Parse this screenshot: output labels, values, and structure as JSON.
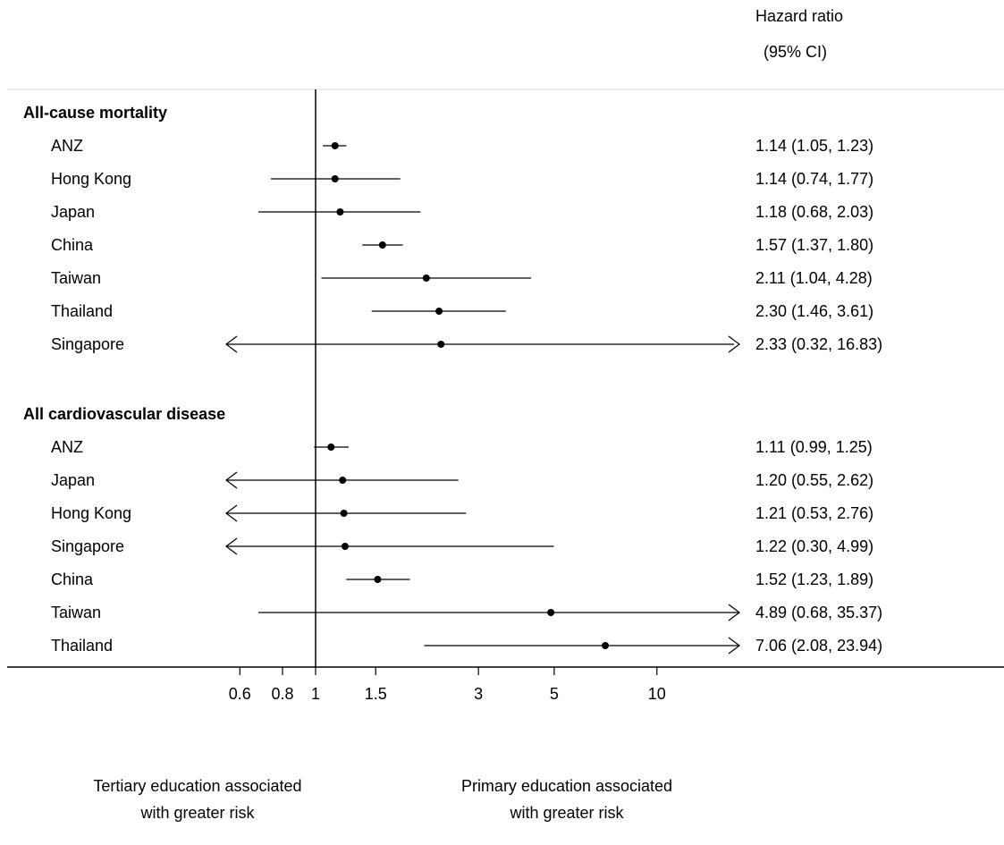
{
  "header": {
    "line1": "Hazard ratio",
    "line2": "(95% CI)"
  },
  "footnotes": {
    "left_line1": "Tertiary education associated",
    "left_line2": "with greater risk",
    "right_line1": "Primary education associated",
    "right_line2": "with greater risk"
  },
  "chart_data": {
    "type": "forest",
    "title": "",
    "xlabel": "Hazard ratio",
    "x_scale": "log",
    "xlim": [
      0.6,
      10
    ],
    "reference_line": 1,
    "x_ticks": [
      {
        "value": 0.6,
        "label": "0.6"
      },
      {
        "value": 0.8,
        "label": "0.8"
      },
      {
        "value": 1,
        "label": "1"
      },
      {
        "value": 1.5,
        "label": "1.5"
      },
      {
        "value": 3,
        "label": "3"
      },
      {
        "value": 5,
        "label": "5"
      },
      {
        "value": 10,
        "label": "10"
      }
    ],
    "groups": [
      {
        "name": "All-cause mortality",
        "rows": [
          {
            "label": "ANZ",
            "hr": 1.14,
            "lower": 1.05,
            "upper": 1.23,
            "text": "1.14 (1.05, 1.23)"
          },
          {
            "label": "Hong Kong",
            "hr": 1.14,
            "lower": 0.74,
            "upper": 1.77,
            "text": "1.14 (0.74, 1.77)"
          },
          {
            "label": "Japan",
            "hr": 1.18,
            "lower": 0.68,
            "upper": 2.03,
            "text": "1.18 (0.68, 2.03)"
          },
          {
            "label": "China",
            "hr": 1.57,
            "lower": 1.37,
            "upper": 1.8,
            "text": "1.57 (1.37, 1.80)"
          },
          {
            "label": "Taiwan",
            "hr": 2.11,
            "lower": 1.04,
            "upper": 4.28,
            "text": "2.11 (1.04, 4.28)"
          },
          {
            "label": "Thailand",
            "hr": 2.3,
            "lower": 1.46,
            "upper": 3.61,
            "text": "2.30 (1.46, 3.61)"
          },
          {
            "label": "Singapore",
            "hr": 2.33,
            "lower": 0.32,
            "upper": 16.83,
            "text": "2.33 (0.32, 16.83)"
          }
        ]
      },
      {
        "name": "All cardiovascular disease",
        "rows": [
          {
            "label": "ANZ",
            "hr": 1.11,
            "lower": 0.99,
            "upper": 1.25,
            "text": "1.11 (0.99, 1.25)"
          },
          {
            "label": "Japan",
            "hr": 1.2,
            "lower": 0.55,
            "upper": 2.62,
            "text": "1.20 (0.55, 2.62)"
          },
          {
            "label": "Hong Kong",
            "hr": 1.21,
            "lower": 0.53,
            "upper": 2.76,
            "text": "1.21 (0.53, 2.76)"
          },
          {
            "label": "Singapore",
            "hr": 1.22,
            "lower": 0.3,
            "upper": 4.99,
            "text": "1.22 (0.30, 4.99)"
          },
          {
            "label": "China",
            "hr": 1.52,
            "lower": 1.23,
            "upper": 1.89,
            "text": "1.52 (1.23, 1.89)"
          },
          {
            "label": "Taiwan",
            "hr": 4.89,
            "lower": 0.68,
            "upper": 35.37,
            "text": "4.89 (0.68, 35.37)"
          },
          {
            "label": "Thailand",
            "hr": 7.06,
            "lower": 2.08,
            "upper": 23.94,
            "text": "7.06 (2.08, 23.94)"
          }
        ]
      }
    ]
  }
}
